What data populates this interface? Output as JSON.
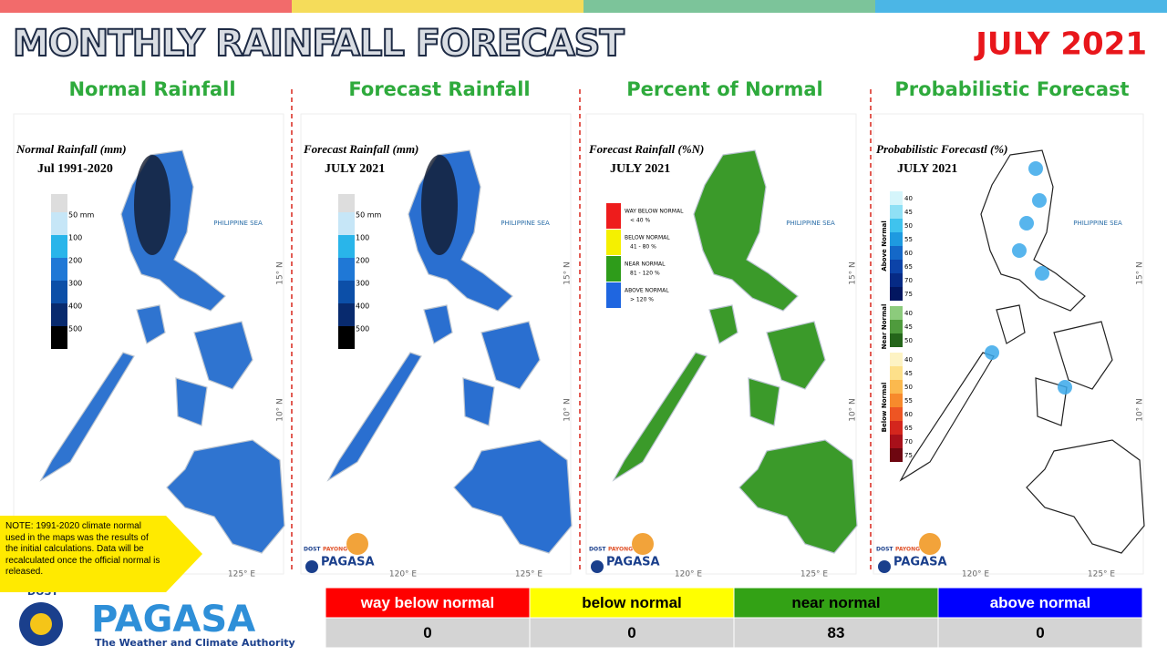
{
  "header": {
    "title": "MONTHLY RAINFALL FORECAST",
    "month": "JULY 2021"
  },
  "panels": [
    {
      "heading": "Normal Rainfall",
      "map_title": "Normal Rainfall (mm)",
      "map_subtitle": "Jul 1991-2020",
      "sea": "PHILIPPINE SEA",
      "lat_labels": [
        "15° N",
        "10° N"
      ],
      "lon_labels": [
        "125° E"
      ],
      "legend": [
        {
          "label": "50 mm",
          "color": "#c6e6f7"
        },
        {
          "label": "100",
          "color": "#29b5ea"
        },
        {
          "label": "200",
          "color": "#1f78d6"
        },
        {
          "label": "300",
          "color": "#0c4fa8"
        },
        {
          "label": "400",
          "color": "#082a6e"
        },
        {
          "label": "500",
          "color": "#000000"
        }
      ]
    },
    {
      "heading": "Forecast Rainfall",
      "map_title": "Forecast Rainfall (mm)",
      "map_subtitle": "JULY 2021",
      "sea": "PHILIPPINE SEA",
      "lat_labels": [
        "15° N",
        "10° N"
      ],
      "lon_labels": [
        "120° E",
        "125° E"
      ],
      "logo": [
        "DOST",
        "PAYONG",
        "PAGASA"
      ],
      "legend": [
        {
          "label": "50 mm",
          "color": "#c6e6f7"
        },
        {
          "label": "100",
          "color": "#29b5ea"
        },
        {
          "label": "200",
          "color": "#1f78d6"
        },
        {
          "label": "300",
          "color": "#0c4fa8"
        },
        {
          "label": "400",
          "color": "#082a6e"
        },
        {
          "label": "500",
          "color": "#000000"
        }
      ]
    },
    {
      "heading": "Percent of Normal",
      "map_title": "Forecast Rainfall (%N)",
      "map_subtitle": "JULY 2021",
      "sea": "PHILIPPINE SEA",
      "lat_labels": [
        "15° N",
        "10° N"
      ],
      "lon_labels": [
        "120° E",
        "125° E"
      ],
      "logo": [
        "DOST",
        "PAYONG",
        "PAGASA"
      ],
      "legend": [
        {
          "label": "WAY BELOW NORMAL",
          "range": "< 40 %",
          "color": "#ee1c1c"
        },
        {
          "label": "BELOW NORMAL",
          "range": "41 - 80 %",
          "color": "#f5f000"
        },
        {
          "label": "NEAR NORMAL",
          "range": "81 - 120 %",
          "color": "#2e9c1a"
        },
        {
          "label": "ABOVE NORMAL",
          "range": "> 120 %",
          "color": "#1f66e0"
        }
      ]
    },
    {
      "heading": "Probabilistic Forecast",
      "map_title": "Probabilistic Forecastl (%)",
      "map_subtitle": "JULY 2021",
      "sea": "PHILIPPINE SEA",
      "lat_labels": [
        "15° N",
        "10° N"
      ],
      "lon_labels": [
        "120° E",
        "125° E"
      ],
      "logo": [
        "DOST",
        "PAYONG",
        "PAGASA"
      ],
      "legend_groups": [
        {
          "name": "Above Normal",
          "labels": [
            40,
            45,
            50,
            55,
            60,
            65,
            70,
            75
          ],
          "colors": [
            "#d5f5fb",
            "#8fe0f5",
            "#3fc3ee",
            "#1e9ae0",
            "#1468c8",
            "#0c43a8",
            "#062a85",
            "#021660"
          ]
        },
        {
          "name": "Near Normal",
          "labels": [
            40,
            45,
            50
          ],
          "colors": [
            "#8ccb7c",
            "#4f9b3d",
            "#24651a"
          ]
        },
        {
          "name": "Below Normal",
          "labels": [
            40,
            45,
            50,
            55,
            60,
            65,
            70,
            75
          ],
          "colors": [
            "#fdf3c4",
            "#fde08a",
            "#fbb94e",
            "#f78a2c",
            "#ee5523",
            "#d4261d",
            "#a8101a",
            "#6e0610"
          ]
        }
      ]
    }
  ],
  "note": "NOTE: 1991-2020 climate normal used in the maps was the results of the initial calculations. Data will be recalculated once the official normal is released.",
  "logo": {
    "top": "DOST",
    "name": "PAGASA",
    "tagline": "The Weather and Climate Authority"
  },
  "table": {
    "headers": [
      {
        "label": "way below normal",
        "color": "#ff0000",
        "text_color": "#ffffff"
      },
      {
        "label": "below normal",
        "color": "#ffff00",
        "text_color": "#000000"
      },
      {
        "label": "near normal",
        "color": "#33a215",
        "text_color": "#000000"
      },
      {
        "label": "above normal",
        "color": "#0000ff",
        "text_color": "#ffffff"
      }
    ],
    "values": [
      0,
      0,
      83,
      0
    ]
  }
}
